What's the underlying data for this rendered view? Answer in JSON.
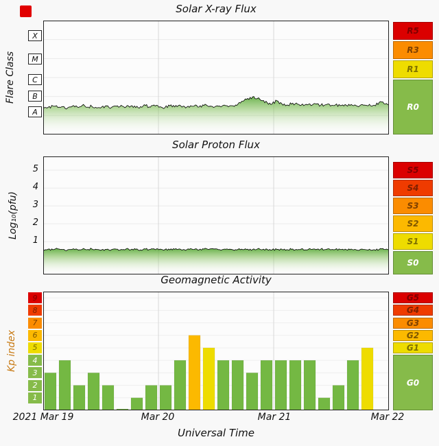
{
  "colors": {
    "background": "#f8f8f8",
    "scale_levels": {
      "5": "#db0000",
      "4": "#ef3b00",
      "3": "#fb8c00",
      "2": "#fcb900",
      "1": "#eedc00",
      "0": "#86bb4a"
    },
    "scale_text": {
      "5": "#7e0000",
      "4": "#7e2000",
      "3": "#7e4000",
      "2": "#7e5600",
      "1": "#7e7000",
      "0": "#ffffff"
    },
    "bar_green": "#74b843",
    "bar_yellow": "#eedc00",
    "bar_amber": "#fcb900",
    "bar_orange": "#fb8c00",
    "bar_red": "#db0000",
    "area_green": "#3f9b22",
    "kp_label_color": "#c87a14",
    "alert_red": "#e10000"
  },
  "panels": [
    {
      "title": "Solar X-ray Flux",
      "ylabel": "Flare Class",
      "yticks": [
        "X",
        "M",
        "C",
        "B",
        "A"
      ],
      "right_scale": [
        {
          "label": "R5",
          "level": 5
        },
        {
          "label": "R3",
          "level": 3
        },
        {
          "label": "R1",
          "level": 1
        },
        {
          "label": "R0",
          "level": 0
        }
      ]
    },
    {
      "title": "Solar Proton Flux",
      "ylabel": "Log₁₀(pfu)",
      "yticks": [
        "5",
        "4",
        "3",
        "2",
        "1"
      ],
      "right_scale": [
        {
          "label": "S5",
          "level": 5
        },
        {
          "label": "S4",
          "level": 4
        },
        {
          "label": "S3",
          "level": 3
        },
        {
          "label": "S2",
          "level": 2
        },
        {
          "label": "S1",
          "level": 1
        },
        {
          "label": "S0",
          "level": 0
        }
      ]
    },
    {
      "title": "Geomagnetic Activity",
      "ylabel": "Kp index",
      "yticks": [
        "9",
        "8",
        "7",
        "6",
        "5",
        "4",
        "3",
        "2",
        "1"
      ],
      "right_scale": [
        {
          "label": "G5",
          "level": 5
        },
        {
          "label": "G4",
          "level": 4
        },
        {
          "label": "G3",
          "level": 3
        },
        {
          "label": "G2",
          "level": 2
        },
        {
          "label": "G1",
          "level": 1
        },
        {
          "label": "G0",
          "level": 0
        }
      ]
    }
  ],
  "xaxis": {
    "labels": [
      "2021 Mar 19",
      "Mar 20",
      "Mar 21",
      "Mar 22"
    ],
    "title": "Universal Time"
  },
  "chart_data": [
    {
      "type": "area",
      "title": "Solar X-ray Flux",
      "ylabel": "Flare Class",
      "x_range": [
        "2021 Mar 19 00:00",
        "2021 Mar 22 00:00"
      ],
      "y_axis": {
        "scale": "log10 W/m2",
        "top": -3,
        "bottom": -9,
        "class_band_centers": {
          "X": -3.5,
          "M": -4.5,
          "C": -5.5,
          "B": -6.5,
          "A": -7.5
        }
      },
      "values_log10_wm2": [
        -7.52,
        -7.57,
        -7.5,
        -7.58,
        -7.53,
        -7.6,
        -7.5,
        -7.55,
        -7.47,
        -7.57,
        -7.52,
        -7.6,
        -7.55,
        -7.49,
        -7.58,
        -7.51,
        -7.46,
        -7.55,
        -7.5,
        -7.58,
        -7.53,
        -7.47,
        -7.56,
        -7.5,
        -7.54,
        -7.58,
        -7.49,
        -7.55,
        -7.45,
        -7.52,
        -7.57,
        -7.5,
        -7.55,
        -7.47,
        -7.53,
        -7.58,
        -7.51,
        -7.46,
        -7.54,
        -7.49,
        -7.4,
        -7.25,
        -7.1,
        -7.02,
        -7.1,
        -7.22,
        -7.32,
        -7.4,
        -7.22,
        -7.38,
        -7.45,
        -7.4,
        -7.34,
        -7.45,
        -7.41,
        -7.48,
        -7.39,
        -7.46,
        -7.43,
        -7.5,
        -7.44,
        -7.48,
        -7.42,
        -7.47,
        -7.44,
        -7.49,
        -7.45,
        -7.41,
        -7.46,
        -7.31,
        -7.38,
        -7.45
      ]
    },
    {
      "type": "area",
      "title": "Solar Proton Flux",
      "ylabel": "Log10(pfu)",
      "x_range": [
        "2021 Mar 19 00:00",
        "2021 Mar 22 00:00"
      ],
      "y_axis": {
        "top": 5.77,
        "bottom": -0.85,
        "ticks": [
          1,
          2,
          3,
          4,
          5
        ]
      },
      "values_log10_pfu": [
        0.55,
        0.57,
        0.54,
        0.58,
        0.55,
        0.53,
        0.57,
        0.55,
        0.56,
        0.54,
        0.58,
        0.55,
        0.53,
        0.56,
        0.54,
        0.57,
        0.55,
        0.58,
        0.54,
        0.56,
        0.53,
        0.57,
        0.55,
        0.54,
        0.57,
        0.55,
        0.53,
        0.56,
        0.58,
        0.54,
        0.56,
        0.55,
        0.53,
        0.57,
        0.55,
        0.58,
        0.54,
        0.56,
        0.55,
        0.53,
        0.56,
        0.54,
        0.57,
        0.55,
        0.58,
        0.54,
        0.56,
        0.53,
        0.55,
        0.57,
        0.54,
        0.56,
        0.55,
        0.58,
        0.53,
        0.56,
        0.54,
        0.57,
        0.55,
        0.53,
        0.56,
        0.55,
        0.57,
        0.54,
        0.56,
        0.53,
        0.55,
        0.57,
        0.54,
        0.56,
        0.55,
        0.54
      ]
    },
    {
      "type": "bar",
      "title": "Geomagnetic Activity",
      "ylabel": "Kp index",
      "start": "2021 Mar 19 00:00",
      "bin_hours": 3,
      "y_axis": {
        "min": 0,
        "max": 9
      },
      "values": [
        3,
        4,
        2,
        3,
        2,
        0,
        1,
        2,
        2,
        4,
        6,
        5,
        4,
        4,
        3,
        4,
        4,
        4,
        4,
        1,
        2,
        4,
        5
      ]
    }
  ]
}
